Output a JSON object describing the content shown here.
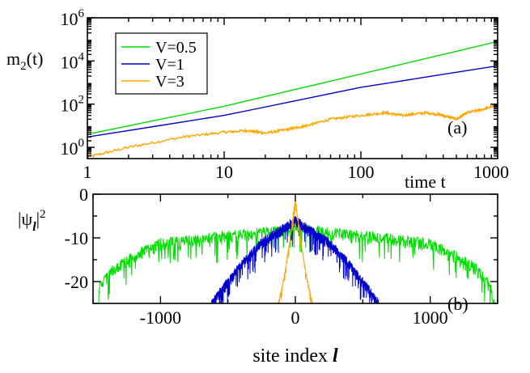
{
  "chart_data": [
    {
      "type": "line",
      "panel_label": "(a)",
      "xlabel": "time t",
      "ylabel_main": "m",
      "ylabel_sub": "2",
      "ylabel_tail": "(t)",
      "x_scale": "log",
      "y_scale": "log",
      "xlim": [
        1,
        1000
      ],
      "ylim": [
        0.3,
        1000000
      ],
      "x_ticks": [
        {
          "value": 1,
          "label": "1"
        },
        {
          "value": 10,
          "label": "10"
        },
        {
          "value": 100,
          "label": "100"
        },
        {
          "value": 1000,
          "label": "1000"
        }
      ],
      "y_ticks": [
        {
          "value": 1,
          "base": "10",
          "exp": "0"
        },
        {
          "value": 100,
          "base": "10",
          "exp": "2"
        },
        {
          "value": 10000,
          "base": "10",
          "exp": "4"
        },
        {
          "value": 1000000,
          "base": "10",
          "exp": "6"
        }
      ],
      "legend_position": "top-left",
      "series": [
        {
          "name": "V=0.5",
          "color": "#00dd00",
          "points": [
            [
              1,
              4
            ],
            [
              10,
              80
            ],
            [
              100,
              2500
            ],
            [
              1000,
              80000
            ]
          ]
        },
        {
          "name": "V=1",
          "color": "#0000cc",
          "points": [
            [
              1,
              3
            ],
            [
              10,
              30
            ],
            [
              100,
              600
            ],
            [
              1000,
              6000
            ]
          ]
        },
        {
          "name": "V=3",
          "color": "#ffa500",
          "points": [
            [
              1,
              0.35
            ],
            [
              2,
              1
            ],
            [
              5,
              3
            ],
            [
              10,
              5
            ],
            [
              15,
              6
            ],
            [
              20,
              4.5
            ],
            [
              30,
              7
            ],
            [
              40,
              10
            ],
            [
              60,
              20
            ],
            [
              100,
              30
            ],
            [
              150,
              40
            ],
            [
              200,
              30
            ],
            [
              300,
              40
            ],
            [
              400,
              30
            ],
            [
              500,
              20
            ],
            [
              600,
              40
            ],
            [
              800,
              60
            ],
            [
              1000,
              90
            ]
          ]
        }
      ]
    },
    {
      "type": "line",
      "panel_label": "(b)",
      "xlabel_text": "site index ",
      "xlabel_symbol": "l",
      "ylabel_main": "|ψ",
      "ylabel_sub": "l",
      "ylabel_tail": "|",
      "ylabel_sup": "2",
      "xlim": [
        -1500,
        1500
      ],
      "ylim": [
        -25,
        0
      ],
      "x_ticks": [
        {
          "value": -1000,
          "label": "-1000"
        },
        {
          "value": 0,
          "label": "0"
        },
        {
          "value": 1000,
          "label": "1000"
        }
      ],
      "y_ticks": [
        {
          "value": 0,
          "label": "0"
        },
        {
          "value": -10,
          "label": "-10"
        },
        {
          "value": -20,
          "label": "-20"
        }
      ],
      "series": [
        {
          "name": "V=0.5",
          "color": "#00dd00",
          "profile": [
            [
              -1480,
              -25
            ],
            [
              -1450,
              -20
            ],
            [
              -1350,
              -16
            ],
            [
              -1200,
              -13
            ],
            [
              -1000,
              -10
            ],
            [
              -700,
              -9
            ],
            [
              -400,
              -8
            ],
            [
              -100,
              -7
            ],
            [
              0,
              -6
            ],
            [
              100,
              -7
            ],
            [
              400,
              -8
            ],
            [
              700,
              -9
            ],
            [
              1000,
              -10
            ],
            [
              1200,
              -13
            ],
            [
              1350,
              -16
            ],
            [
              1450,
              -20
            ],
            [
              1480,
              -25
            ]
          ],
          "noise": 3.5
        },
        {
          "name": "V=1",
          "color": "#0000cc",
          "profile": [
            [
              -640,
              -25
            ],
            [
              -550,
              -21
            ],
            [
              -400,
              -15
            ],
            [
              -250,
              -10
            ],
            [
              -100,
              -7
            ],
            [
              0,
              -5
            ],
            [
              100,
              -7
            ],
            [
              250,
              -10
            ],
            [
              400,
              -15
            ],
            [
              550,
              -21
            ],
            [
              640,
              -25
            ]
          ],
          "noise": 3
        },
        {
          "name": "V=3",
          "color": "#ffa500",
          "profile": [
            [
              -130,
              -25
            ],
            [
              -80,
              -18
            ],
            [
              -40,
              -10
            ],
            [
              -10,
              -3
            ],
            [
              0,
              -1
            ],
            [
              10,
              -3
            ],
            [
              40,
              -10
            ],
            [
              80,
              -18
            ],
            [
              130,
              -25
            ]
          ],
          "noise": 1.5
        }
      ]
    }
  ]
}
